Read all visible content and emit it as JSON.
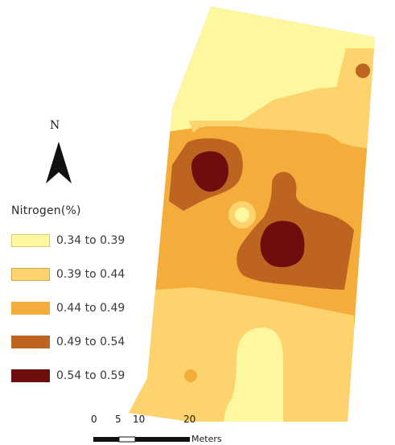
{
  "map": {
    "north_arrow": {
      "label": "N",
      "icon": "north-arrow-icon"
    },
    "legend": {
      "title": "Nitrogen(%)",
      "classes": [
        {
          "label": "0.34 to 0.39",
          "color": "#fdf7a0"
        },
        {
          "label": "0.39 to 0.44",
          "color": "#fcd36d"
        },
        {
          "label": "0.44 to 0.49",
          "color": "#f4ac3b"
        },
        {
          "label": "0.49 to 0.54",
          "color": "#bc6420"
        },
        {
          "label": "0.54 to 0.59",
          "color": "#6e0d0d"
        }
      ]
    },
    "scale_bar": {
      "ticks": [
        "0",
        "5",
        "10",
        "20"
      ],
      "unit": "Meters"
    }
  }
}
